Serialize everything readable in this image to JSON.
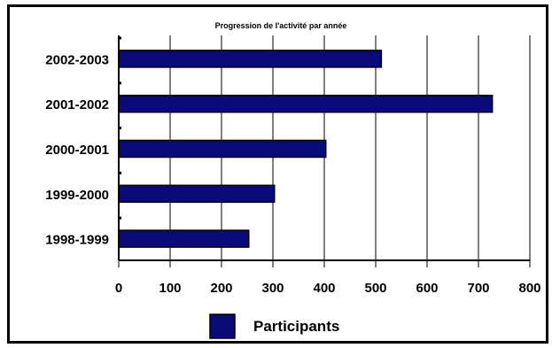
{
  "chart_data": {
    "type": "bar",
    "orientation": "horizontal",
    "title": "Progression de l'activité par année",
    "categories": [
      "1998-1999",
      "1999-2000",
      "2000-2001",
      "2001-2002",
      "2002-2003"
    ],
    "series": [
      {
        "name": "Participants",
        "values": [
          253,
          303,
          403,
          727,
          511
        ],
        "color": "#0a0a7a"
      }
    ],
    "xlabel": "",
    "ylabel": "",
    "xlim": [
      0,
      800
    ],
    "x_ticks": [
      "0",
      "100",
      "200",
      "300",
      "400",
      "500",
      "600",
      "700",
      "800"
    ],
    "grid": "vertical",
    "legend": {
      "position": "bottom-center"
    }
  },
  "colors": {
    "bar_fill": "#0a0a7a",
    "bar_edge": "#000000",
    "grid": "#000000"
  }
}
